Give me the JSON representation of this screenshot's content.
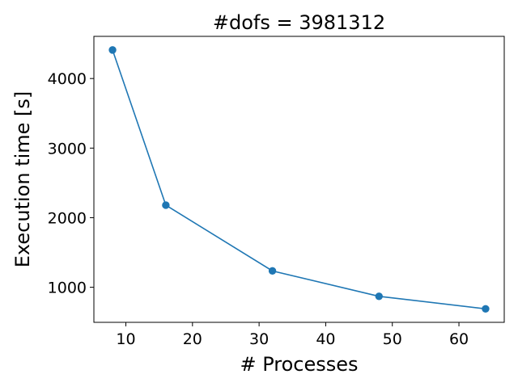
{
  "chart_data": {
    "type": "line",
    "title": "#dofs = 3981312",
    "xlabel": "# Processes",
    "ylabel": "Execution time [s]",
    "x": [
      8,
      16,
      32,
      48,
      64
    ],
    "series": [
      {
        "values": [
          4410,
          2180,
          1235,
          870,
          690
        ],
        "color": "#1f77b4",
        "marker": "circle"
      }
    ],
    "xlim": [
      5.2,
      66.8
    ],
    "ylim": [
      496,
      4606
    ],
    "xticks": [
      10,
      20,
      30,
      40,
      50,
      60
    ],
    "yticks": [
      1000,
      2000,
      3000,
      4000
    ],
    "xtick_labels": [
      "10",
      "20",
      "30",
      "40",
      "50",
      "60"
    ],
    "ytick_labels": [
      "1000",
      "2000",
      "3000",
      "4000"
    ],
    "grid": false,
    "legend": "none"
  }
}
